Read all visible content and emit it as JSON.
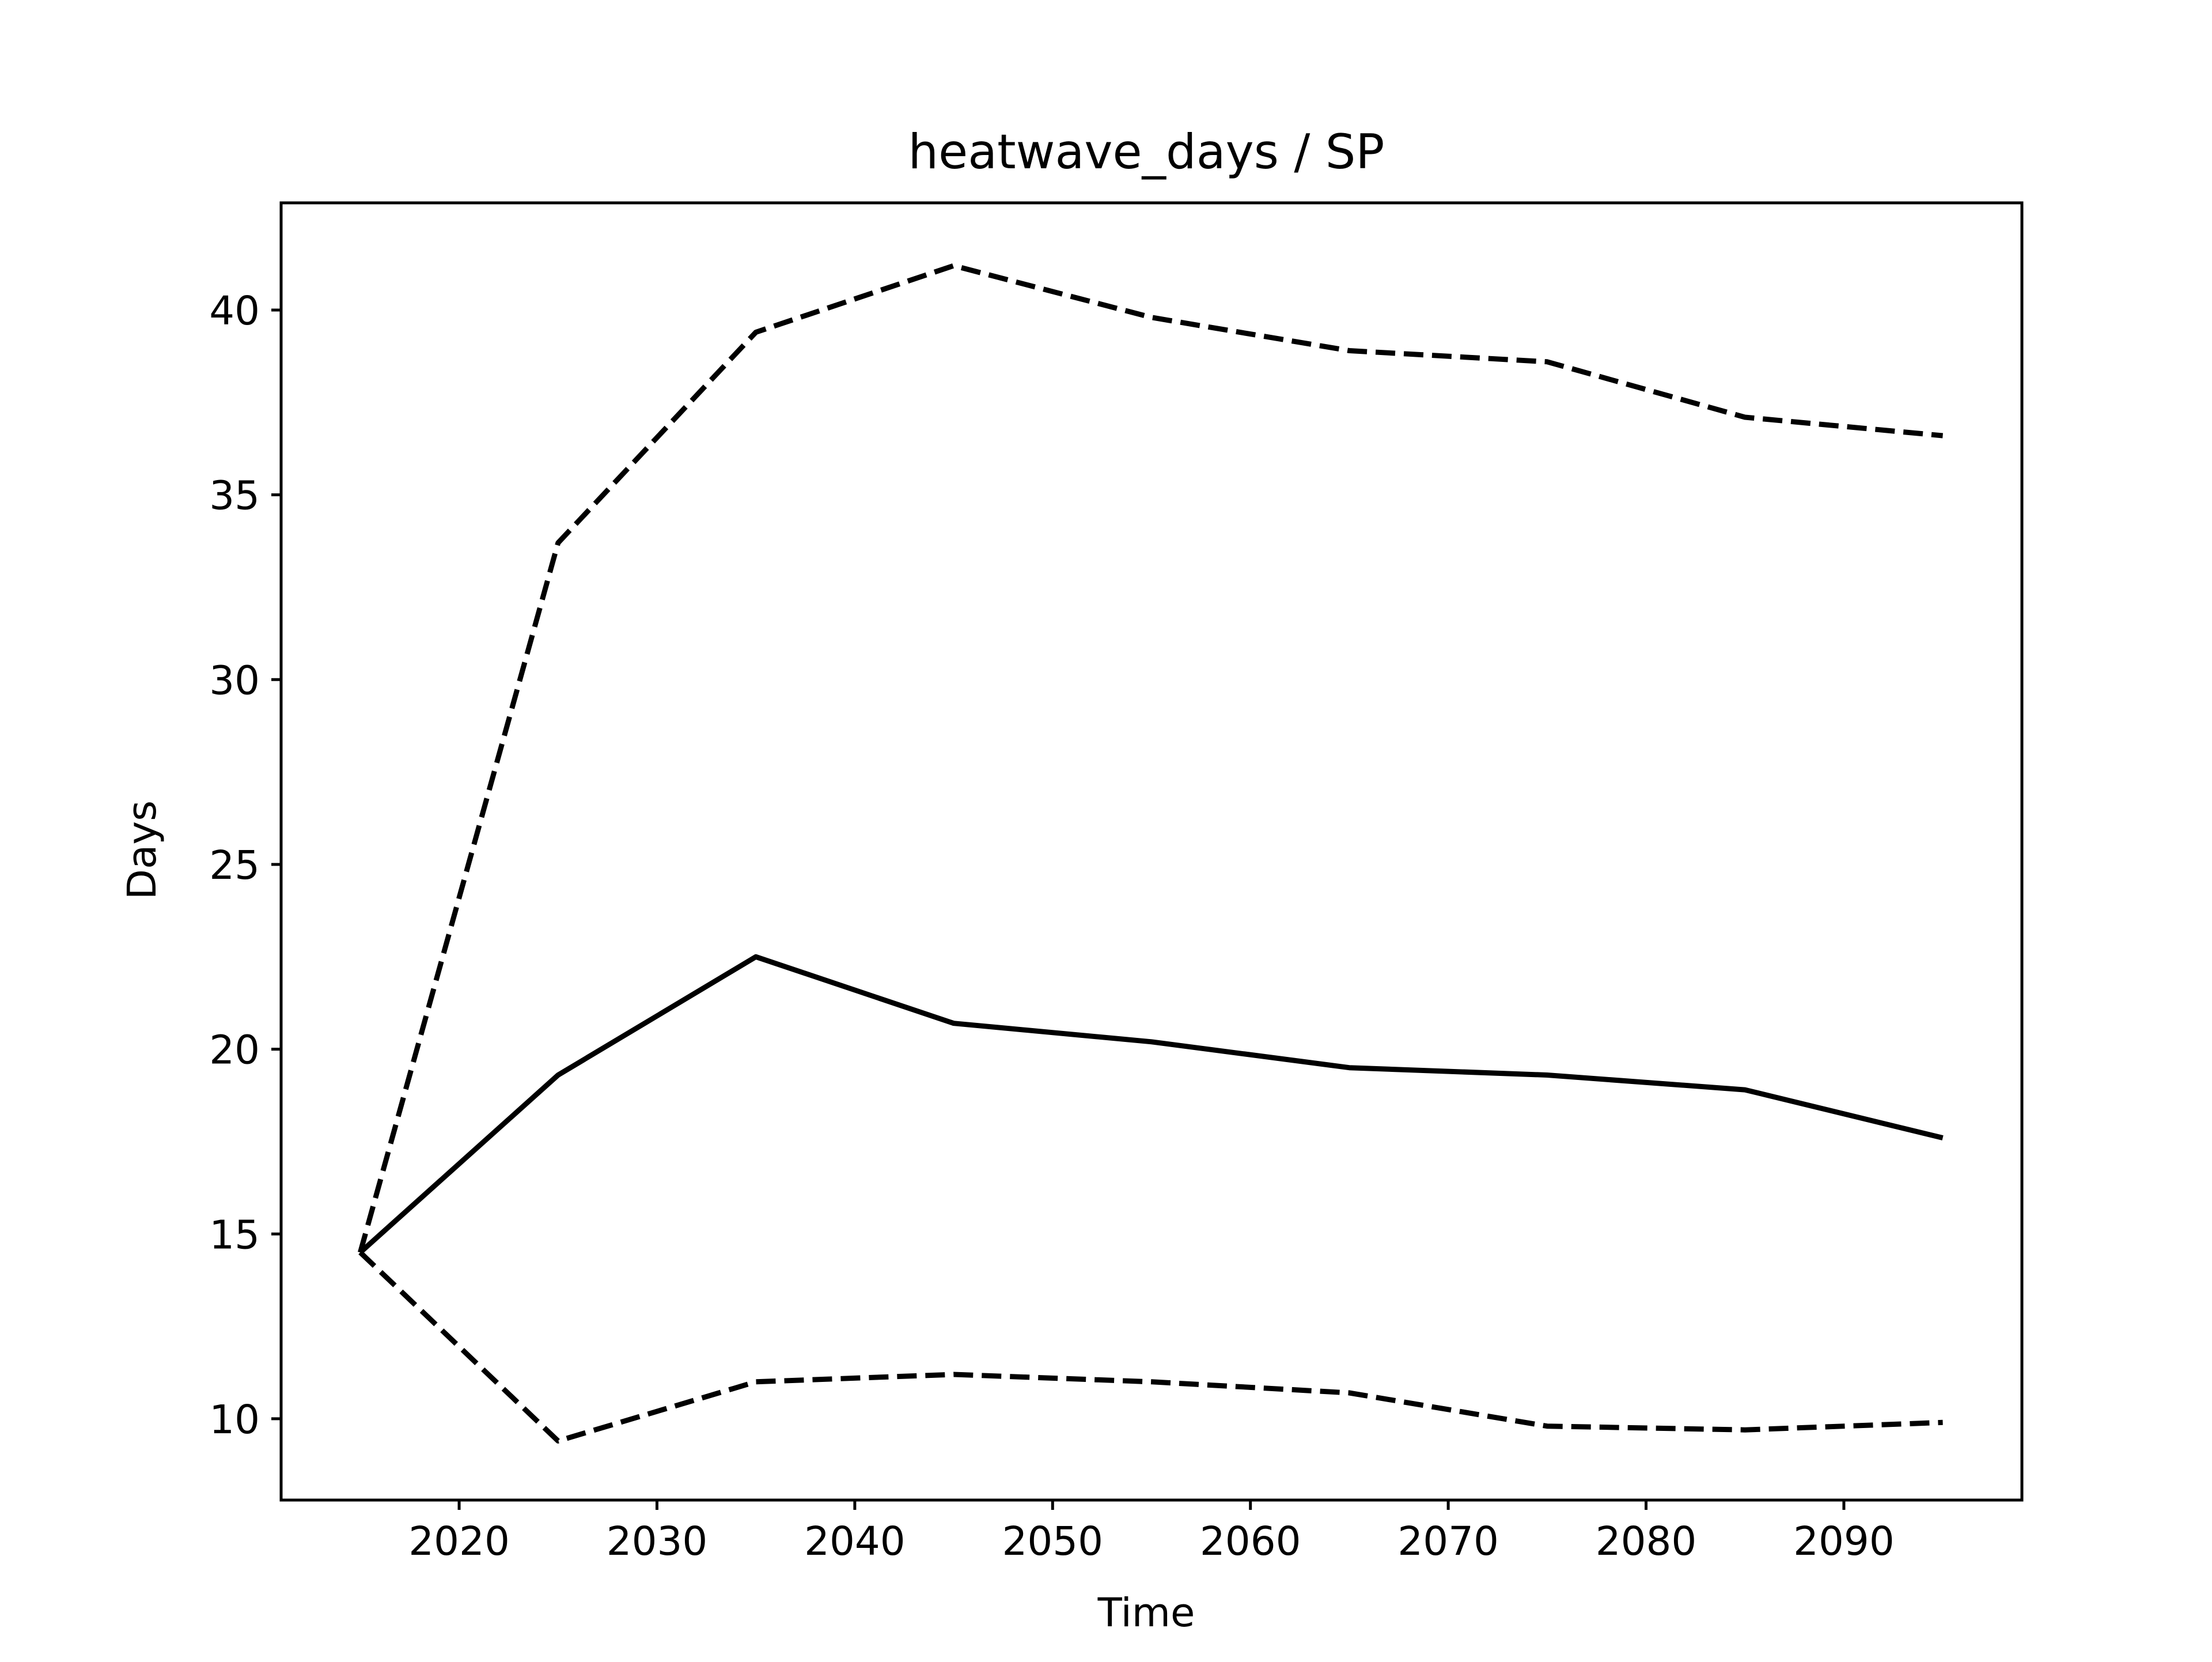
{
  "chart_data": {
    "type": "line",
    "title": "heatwave_days / SP",
    "xlabel": "Time",
    "ylabel": "Days",
    "xlim": [
      2011,
      2099
    ],
    "ylim": [
      7.8,
      42.9
    ],
    "xticks": [
      2020,
      2030,
      2040,
      2050,
      2060,
      2070,
      2080,
      2090
    ],
    "yticks": [
      10,
      15,
      20,
      25,
      30,
      35,
      40
    ],
    "x": [
      2015,
      2025,
      2035,
      2045,
      2055,
      2065,
      2075,
      2085,
      2095
    ],
    "series": [
      {
        "style": "solid",
        "color": "#000000",
        "values": [
          14.5,
          19.3,
          22.5,
          20.7,
          20.2,
          19.5,
          19.3,
          18.9,
          17.6
        ]
      },
      {
        "style": "dashed",
        "color": "#000000",
        "values": [
          14.5,
          33.7,
          39.4,
          41.2,
          39.8,
          38.9,
          38.6,
          37.1,
          36.6
        ]
      },
      {
        "style": "dashed",
        "color": "#000000",
        "values": [
          14.5,
          9.4,
          11.0,
          11.2,
          11.0,
          10.7,
          9.8,
          9.7,
          9.9
        ]
      }
    ],
    "grid": false,
    "legend": "none"
  }
}
